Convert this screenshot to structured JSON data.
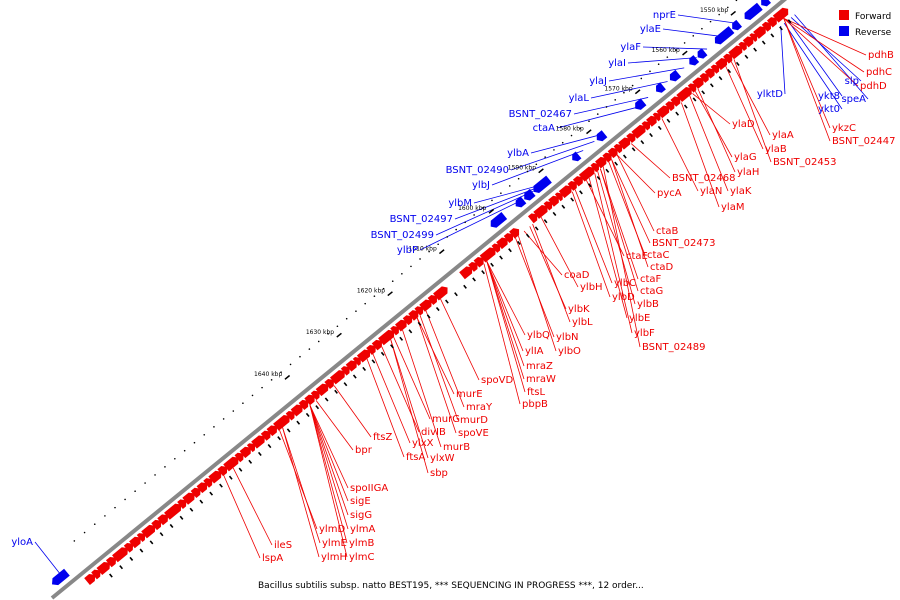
{
  "caption": "Bacillus subtilis subsp. natto BEST195, *** SEQUENCING IN PROGRESS ***, 12 order...",
  "legend": [
    {
      "label": "Forward",
      "color": "#ee0000"
    },
    {
      "label": "Reverse",
      "color": "#0000ee"
    }
  ],
  "colors": {
    "forward": "#ee0000",
    "reverse": "#0000ee",
    "backbone": "#888888"
  },
  "ticks": [
    "1550 kbp",
    "1560 kbp",
    "1570 kbp",
    "1580 kbp",
    "1590 kbp",
    "1600 kbp",
    "1610 kbp",
    "1620 kbp",
    "1630 kbp",
    "1640 kbp"
  ],
  "reverse_labels": [
    "nprE",
    "ylaE",
    "ylaF",
    "ylaI",
    "ylaJ",
    "ylaL",
    "BSNT_02467",
    "ctaA",
    "ylbA",
    "BSNT_02490",
    "ylbJ",
    "ylbM",
    "BSNT_02497",
    "BSNT_02499",
    "ylbP",
    "ylktD",
    "slp",
    "ykt8",
    "ykt0",
    "speA",
    "yloA"
  ],
  "forward_labels": [
    "pdhB",
    "pdhC",
    "pdhD",
    "ylaD",
    "ylaA",
    "ylaB",
    "ykzC",
    "BSNT_02447",
    "ylaG",
    "ylaH",
    "BSNT_02453",
    "ylaK",
    "BSNT_02468",
    "ylaN",
    "ylaM",
    "pycA",
    "ctaB",
    "BSNT_02473",
    "ctaC",
    "ctaE",
    "ctaD",
    "ctaF",
    "coaD",
    "ylbH",
    "ylbC",
    "ctaG",
    "ylbD",
    "ylbB",
    "ylbK",
    "ylbL",
    "ylbE",
    "ylbF",
    "ylbQ",
    "ylbN",
    "BSNT_02489",
    "ylIA",
    "ylbO",
    "mraZ",
    "spoVD",
    "mraW",
    "murE",
    "ftsL",
    "mraY",
    "pbpB",
    "murG",
    "murD",
    "divIB",
    "spoVE",
    "ftsZ",
    "ylxX",
    "murB",
    "ftsA",
    "ylxW",
    "sbp",
    "bpr",
    "spoIIGA",
    "sigE",
    "sigG",
    "ylmD",
    "ylmA",
    "ylmE",
    "ylmB",
    "ileS",
    "ylmH",
    "ylmC",
    "lspA"
  ]
}
